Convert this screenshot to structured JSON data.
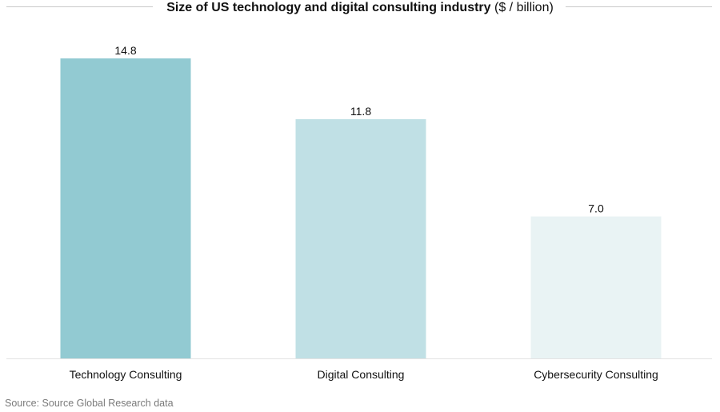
{
  "chart_data": {
    "type": "bar",
    "title": "Size of US technology and digital consulting industry",
    "title_unit": "($ / billion)",
    "categories": [
      "Technology Consulting",
      "Digital Consulting",
      "Cybersecurity Consulting"
    ],
    "values": [
      14.8,
      11.8,
      7.0
    ],
    "data_labels": [
      "14.8",
      "11.8",
      "7.0"
    ],
    "colors": [
      "#92cad2",
      "#c0e0e5",
      "#e9f3f4"
    ],
    "xlabel": "",
    "ylabel": "",
    "ylim": [
      0,
      14.8
    ],
    "grid": false,
    "legend": "none"
  },
  "source": "Source: Source Global Research data"
}
